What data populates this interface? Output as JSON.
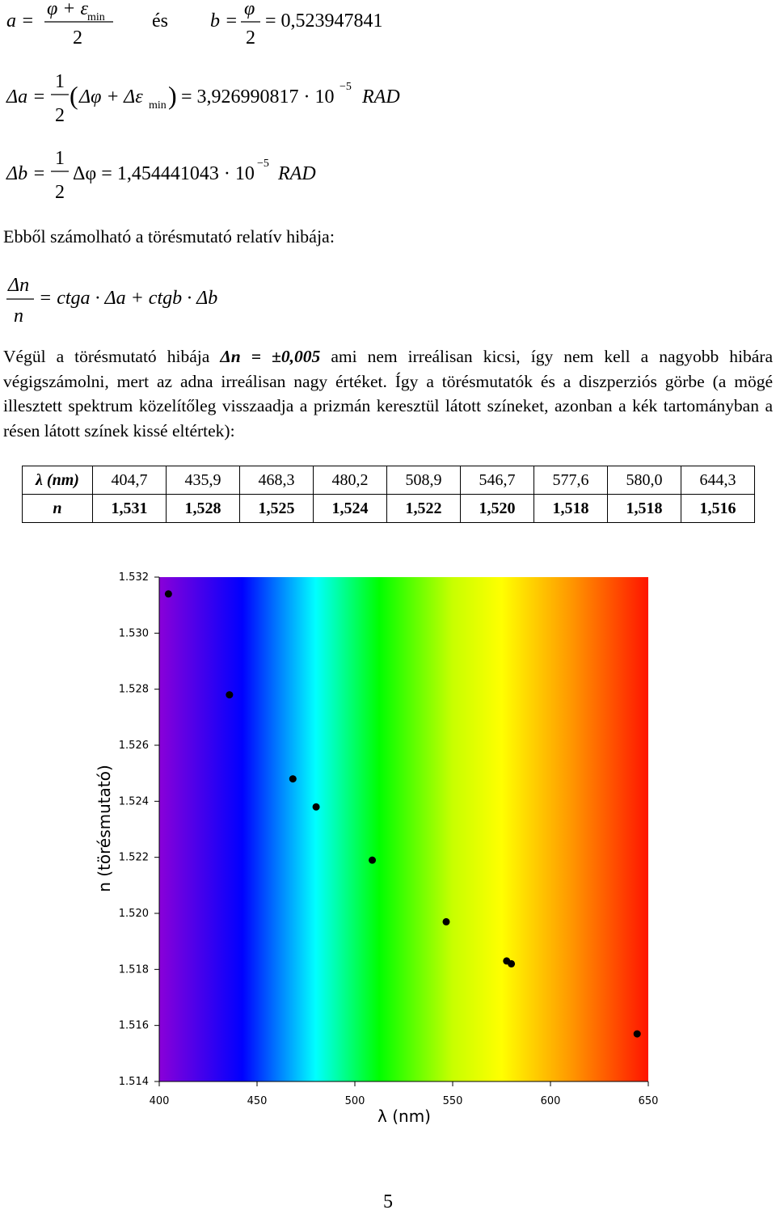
{
  "formula_a": {
    "lhs": "a =",
    "num": "φ + ε",
    "num_sub": "min",
    "den": "2",
    "mid": "és",
    "b_lhs": "b =",
    "b_num": "φ",
    "b_den": "2",
    "b_rhs": "= 0,523947841"
  },
  "formula_da": {
    "lhs": "Δa =",
    "num": "1",
    "den": "2",
    "open": "(",
    "body": "Δφ + Δε",
    "body_sub": "min",
    "close": ")",
    "rhs": "= 3,926990817 · 10",
    "exp": "−5",
    "unit": "RAD"
  },
  "formula_db": {
    "lhs": "Δb =",
    "num": "1",
    "den": "2",
    "rhs": "Δφ = 1,454441043 · 10",
    "exp": "−5",
    "unit": "RAD"
  },
  "intro": "Ebből számolható a törésmutató relatív hibája:",
  "formula_rel": {
    "num": "Δn",
    "den": "n",
    "rhs": "= ctga · Δa + ctgb · Δb"
  },
  "paragraph": {
    "before": "Végül a törésmutató hibája ",
    "highlight": "Δn = ±0,005",
    "after": " ami nem irreálisan kicsi, így nem kell a nagyobb hibára végigszámolni, mert az adna irreálisan nagy értéket. Így a törésmutatók és a diszperziós görbe (a mögé illesztett spektrum közelítőleg visszaadja a prizmán keresztül látott színeket, azonban a kék tartományban a résen látott színek kissé eltértek):"
  },
  "table": {
    "rows": [
      [
        "λ (nm)",
        "404,7",
        "435,9",
        "468,3",
        "480,2",
        "508,9",
        "546,7",
        "577,6",
        "580,0",
        "644,3"
      ],
      [
        "n",
        "1,531",
        "1,528",
        "1,525",
        "1,524",
        "1,522",
        "1,520",
        "1,518",
        "1,518",
        "1,516"
      ]
    ]
  },
  "chart_data": {
    "type": "scatter",
    "x_label": "λ (nm)",
    "y_label": "n (törésmutató)",
    "x": [
      404.7,
      435.9,
      468.3,
      480.2,
      508.9,
      546.7,
      577.6,
      580.0,
      644.3
    ],
    "series": [
      {
        "color": "#000000",
        "values": [
          1.5314,
          1.5278,
          1.5248,
          1.5238,
          1.5219,
          1.5197,
          1.5183,
          1.5182,
          1.5157
        ]
      }
    ],
    "xlim": [
      400,
      650
    ],
    "xticks": [
      400,
      450,
      500,
      550,
      600,
      650
    ],
    "ylim": [
      1.514,
      1.532
    ],
    "yticks": [
      1.514,
      1.516,
      1.518,
      {
        "value": 1.52,
        "label": "1.520"
      },
      1.522,
      1.524,
      1.526,
      1.528,
      {
        "value": 1.53,
        "label": "1.530"
      },
      1.532
    ]
  },
  "page_number": "5"
}
